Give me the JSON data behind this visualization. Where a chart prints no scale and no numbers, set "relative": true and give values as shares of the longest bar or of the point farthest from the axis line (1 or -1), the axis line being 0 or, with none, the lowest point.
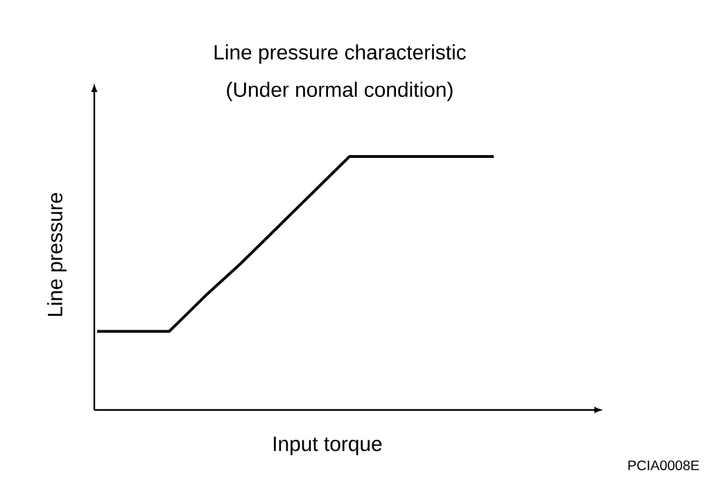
{
  "chart_data": {
    "type": "line",
    "title": "Line pressure characteristic",
    "subtitle": "(Under normal condition)",
    "xlabel": "Input torque",
    "ylabel": "Line pressure",
    "categories": [
      null,
      null,
      null,
      null,
      null,
      null,
      null,
      null,
      null,
      null,
      null,
      null
    ],
    "series": [
      {
        "color": "#000000",
        "values": [
          0.31,
          0.31,
          0.31,
          0.45,
          0.58,
          0.72,
          0.86,
          1,
          1,
          1,
          1,
          1
        ]
      }
    ],
    "relative": true,
    "tick_labels": false,
    "annotations": [
      "PCIA0008E"
    ]
  }
}
